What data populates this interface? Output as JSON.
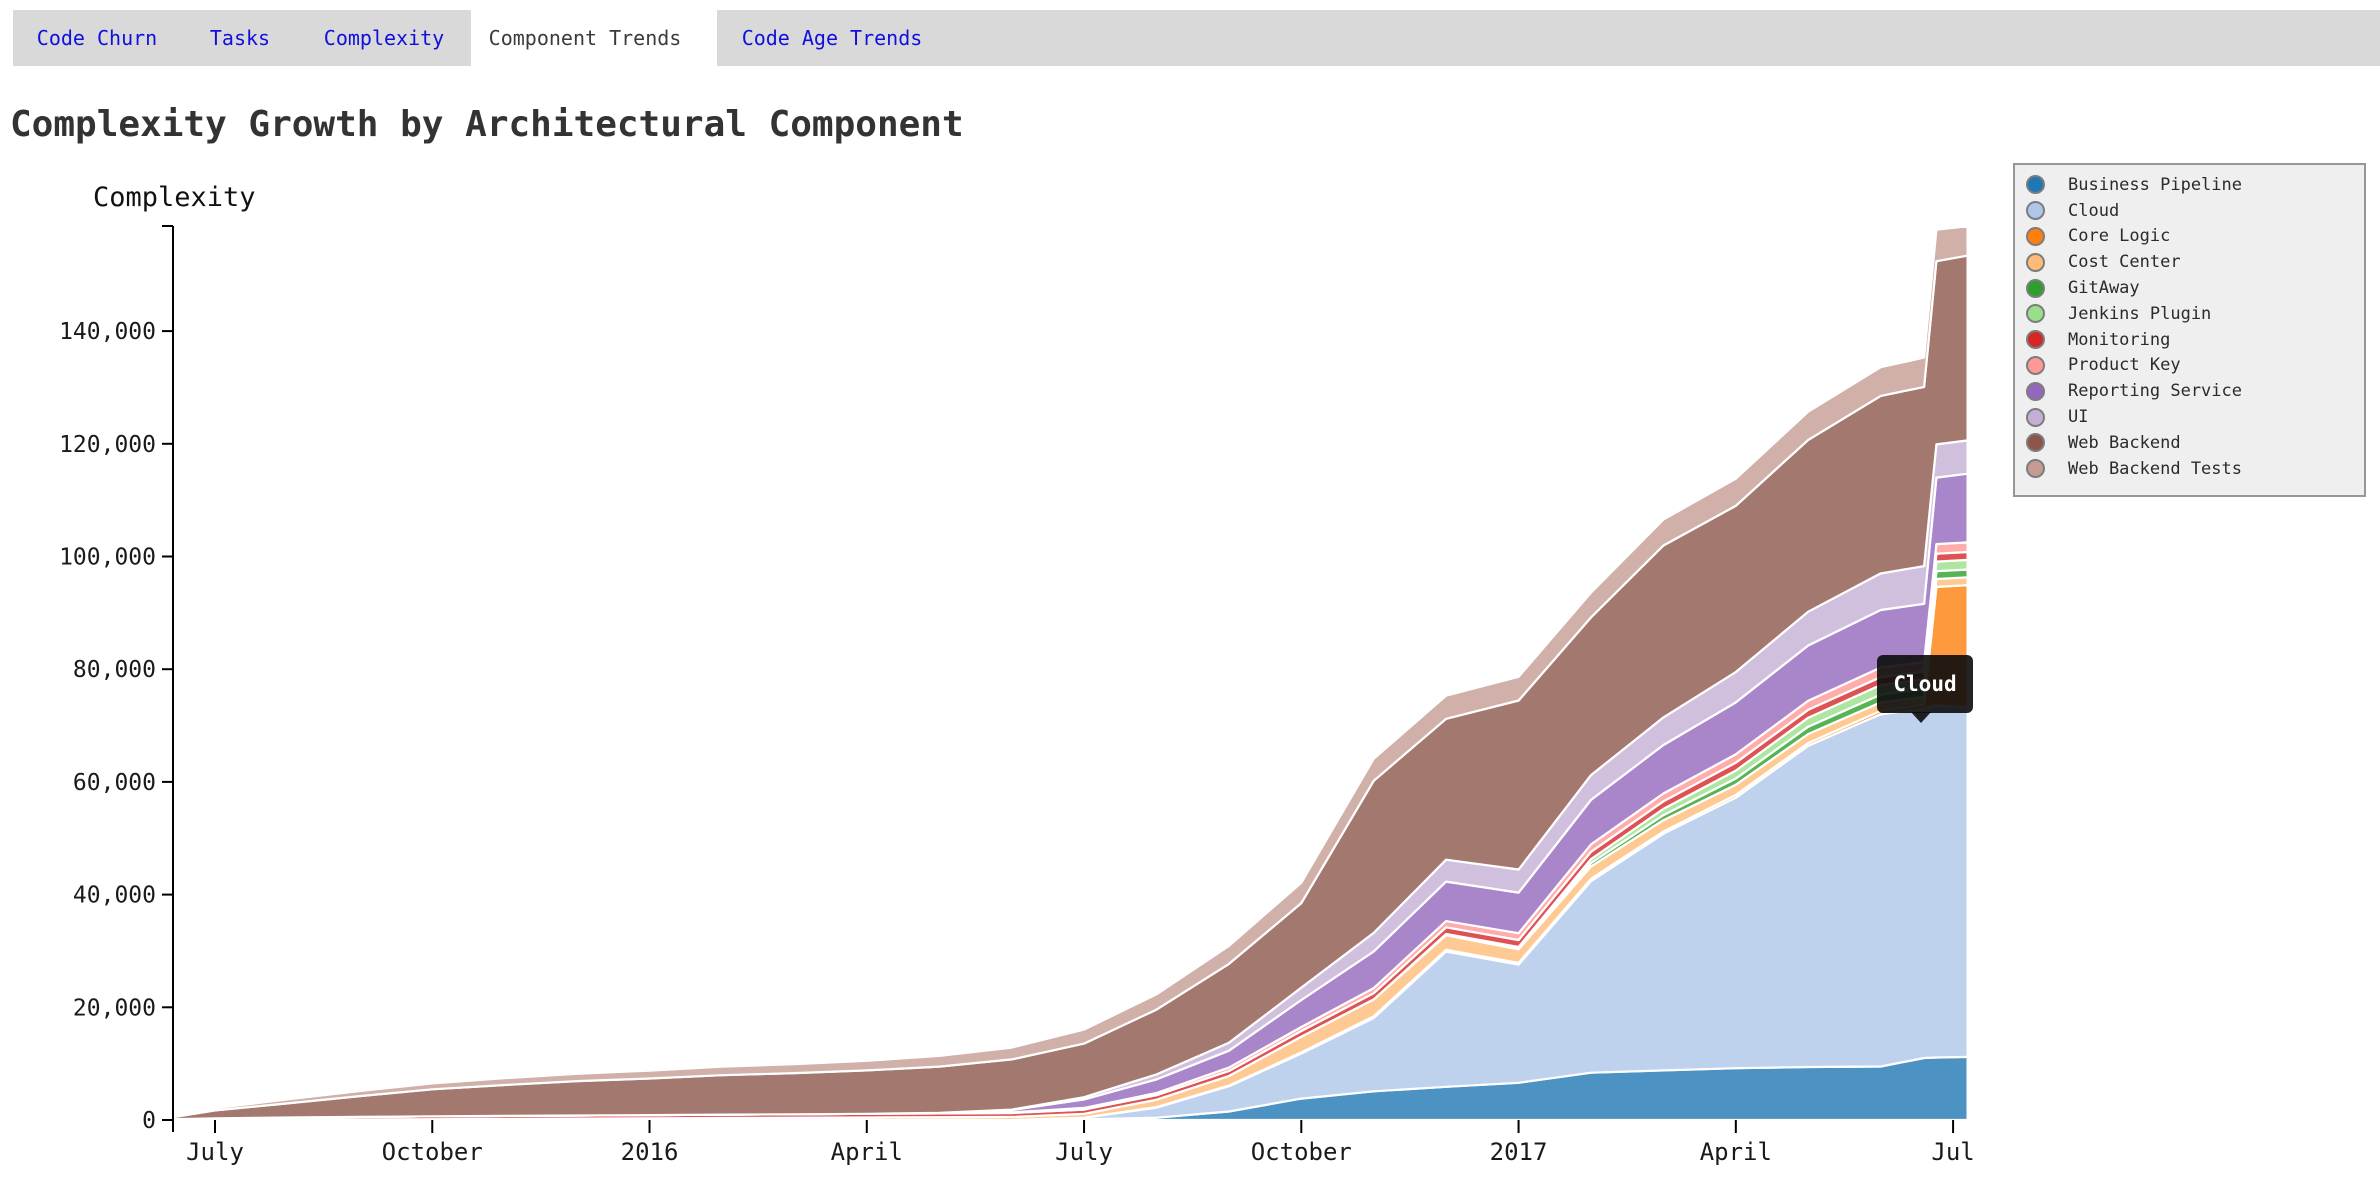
{
  "tabs": {
    "items": [
      {
        "label": "Code Churn",
        "active": false
      },
      {
        "label": "Tasks",
        "active": false
      },
      {
        "label": "Complexity",
        "active": false
      },
      {
        "label": "Component Trends",
        "active": true
      },
      {
        "label": "Code Age Trends",
        "active": false
      }
    ]
  },
  "title": "Complexity Growth by Architectural Component",
  "tooltip": {
    "label": "Cloud"
  },
  "colors": {
    "link_blue": "#1010dd",
    "active_tab_text": "#3b3b3b",
    "tab_strip_bg": "#d9d9d9",
    "title_text": "#333333",
    "legend_bg": "#efefef",
    "legend_border": "#979797",
    "tooltip_bg": "#0c0c0c",
    "tooltip_text": "#ffffff",
    "axis": "#000000"
  },
  "chart_data": {
    "type": "area",
    "stacked": true,
    "title": "Complexity Growth by Architectural Component",
    "ylabel": "Complexity",
    "xlabel": "",
    "grid": false,
    "legend_position": "right",
    "ylim": [
      0,
      158700
    ],
    "y_ticks": [
      0,
      20000,
      40000,
      60000,
      80000,
      100000,
      120000,
      140000
    ],
    "x_tick_labels": [
      "July",
      "October",
      "2016",
      "April",
      "July",
      "October",
      "2017",
      "April",
      "Jul"
    ],
    "x_tick_months": [
      0.58,
      3.58,
      6.58,
      9.58,
      12.58,
      15.58,
      18.58,
      21.58,
      24.58
    ],
    "x_dates": [
      "2015-06-13",
      "2015-07-01",
      "2015-08-01",
      "2015-09-01",
      "2015-10-01",
      "2015-11-01",
      "2015-12-01",
      "2016-01-01",
      "2016-02-01",
      "2016-03-01",
      "2016-04-01",
      "2016-05-01",
      "2016-06-01",
      "2016-07-01",
      "2016-08-01",
      "2016-09-01",
      "2016-10-01",
      "2016-11-01",
      "2016-12-01",
      "2017-01-01",
      "2017-02-01",
      "2017-03-01",
      "2017-04-01",
      "2017-05-01",
      "2017-06-01",
      "2017-06-19",
      "2017-06-24",
      "2017-07-07"
    ],
    "x_months": [
      0,
      0.58,
      1.58,
      2.58,
      3.58,
      4.58,
      5.58,
      6.58,
      7.58,
      8.58,
      9.58,
      10.58,
      11.58,
      12.58,
      13.58,
      14.58,
      15.58,
      16.58,
      17.58,
      18.58,
      19.58,
      20.58,
      21.58,
      22.58,
      23.58,
      24.18,
      24.35,
      24.78
    ],
    "series": [
      {
        "name": "Business Pipeline",
        "color": "#1f77b4",
        "values": [
          0,
          0,
          0,
          0,
          0,
          0,
          0,
          0,
          0,
          0,
          0,
          0,
          0,
          100,
          400,
          1500,
          3800,
          5100,
          5900,
          6600,
          8400,
          8800,
          9200,
          9400,
          9500,
          11000,
          11100,
          11200
        ]
      },
      {
        "name": "Cloud",
        "color": "#aec7e8",
        "values": [
          0,
          0,
          0,
          0,
          0,
          0,
          0,
          0,
          0,
          0,
          0,
          0,
          0,
          300,
          1800,
          4500,
          8000,
          13000,
          24000,
          21000,
          34000,
          42000,
          48000,
          57000,
          62500,
          62000,
          62500,
          62000
        ]
      },
      {
        "name": "Core Logic",
        "color": "#ff7f0e",
        "values": [
          0,
          0,
          0,
          0,
          0,
          0,
          0,
          0,
          0,
          0,
          0,
          0,
          0,
          0,
          100,
          100,
          200,
          300,
          300,
          300,
          400,
          400,
          500,
          500,
          600,
          700,
          21000,
          21700
        ]
      },
      {
        "name": "Cost Center",
        "color": "#ffbb78",
        "values": [
          0,
          0,
          50,
          100,
          150,
          200,
          250,
          300,
          350,
          400,
          450,
          500,
          550,
          700,
          1300,
          1700,
          2800,
          3000,
          2600,
          2400,
          2200,
          2000,
          1800,
          1600,
          1500,
          1400,
          1400,
          1400
        ]
      },
      {
        "name": "GitAway",
        "color": "#2ca02c",
        "values": [
          0,
          0,
          0,
          0,
          0,
          0,
          0,
          0,
          0,
          0,
          0,
          0,
          0,
          0,
          0,
          0,
          0,
          0,
          100,
          200,
          600,
          900,
          1100,
          1300,
          1400,
          1400,
          1400,
          1400
        ]
      },
      {
        "name": "Jenkins Plugin",
        "color": "#98df8a",
        "values": [
          0,
          0,
          0,
          0,
          0,
          0,
          0,
          0,
          0,
          0,
          0,
          0,
          0,
          0,
          0,
          0,
          0,
          0,
          100,
          200,
          700,
          1100,
          1400,
          1600,
          1700,
          1700,
          1700,
          1700
        ]
      },
      {
        "name": "Monitoring",
        "color": "#d62728",
        "values": [
          150,
          300,
          400,
          450,
          500,
          520,
          550,
          570,
          600,
          620,
          650,
          670,
          700,
          750,
          800,
          900,
          1000,
          1100,
          1200,
          1250,
          1300,
          1350,
          1400,
          1400,
          1400,
          1400,
          1400,
          1400
        ]
      },
      {
        "name": "Product Key",
        "color": "#ff9896",
        "values": [
          0,
          0,
          0,
          0,
          0,
          0,
          0,
          0,
          0,
          0,
          0,
          0,
          100,
          300,
          400,
          600,
          700,
          900,
          1100,
          1200,
          1300,
          1400,
          1500,
          1600,
          1700,
          1700,
          1700,
          1700
        ]
      },
      {
        "name": "Reporting Service",
        "color": "#9467bd",
        "values": [
          0,
          0,
          0,
          0,
          0,
          0,
          0,
          0,
          0,
          0,
          0,
          100,
          400,
          1500,
          2400,
          3000,
          4800,
          6500,
          7000,
          7200,
          7900,
          8600,
          9200,
          9800,
          10200,
          10300,
          11800,
          12200
        ]
      },
      {
        "name": "UI",
        "color": "#c5b0d5",
        "values": [
          0,
          0,
          0,
          0,
          0,
          0,
          0,
          0,
          0,
          0,
          0,
          0,
          100,
          400,
          900,
          1400,
          2200,
          3300,
          3900,
          4100,
          4400,
          4900,
          5400,
          6000,
          6500,
          6700,
          5900,
          5900
        ]
      },
      {
        "name": "Web Backend",
        "color": "#8c564b",
        "values": [
          350,
          1400,
          2500,
          3700,
          4800,
          5500,
          6100,
          6500,
          7000,
          7300,
          7700,
          8200,
          8900,
          9500,
          11500,
          14000,
          15000,
          27000,
          25000,
          30000,
          28000,
          30500,
          29500,
          30500,
          31500,
          31800,
          32500,
          32800
        ]
      },
      {
        "name": "Web Backend Tests",
        "color": "#c49c94",
        "values": [
          100,
          400,
          700,
          900,
          1050,
          1200,
          1300,
          1400,
          1500,
          1600,
          1700,
          1900,
          2100,
          2500,
          2700,
          3200,
          3600,
          3900,
          4100,
          4200,
          4400,
          4600,
          4800,
          5000,
          5100,
          5200,
          5600,
          5200
        ]
      }
    ]
  }
}
